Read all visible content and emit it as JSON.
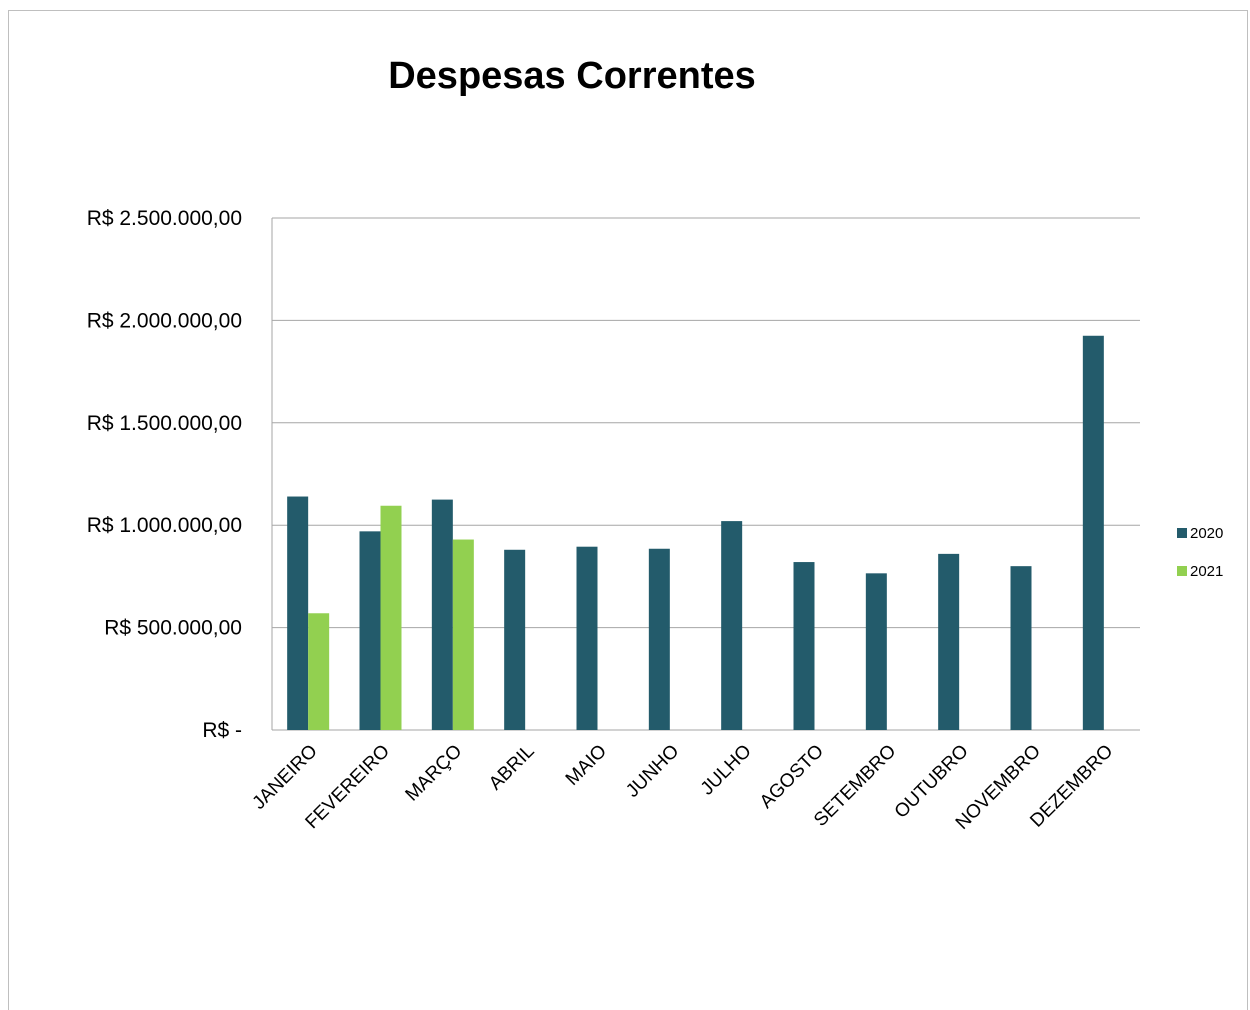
{
  "chart_data": {
    "type": "bar",
    "title": "Despesas Correntes",
    "xlabel": "",
    "ylabel": "",
    "categories": [
      "JANEIRO",
      "FEVEREIRO",
      "MARÇO",
      "ABRIL",
      "MAIO",
      "JUNHO",
      "JULHO",
      "AGOSTO",
      "SETEMBRO",
      "OUTUBRO",
      "NOVEMBRO",
      "DEZEMBRO"
    ],
    "series": [
      {
        "name": "2020",
        "color": "#235b6b",
        "values": [
          1140000,
          970000,
          1125000,
          880000,
          895000,
          885000,
          1020000,
          820000,
          765000,
          860000,
          800000,
          1925000
        ]
      },
      {
        "name": "2021",
        "color": "#92d050",
        "values": [
          570000,
          1095000,
          930000,
          null,
          null,
          null,
          null,
          null,
          null,
          null,
          null,
          null
        ]
      }
    ],
    "ylim": [
      0,
      2500000
    ],
    "yticks": [
      0,
      500000,
      1000000,
      1500000,
      2000000,
      2500000
    ],
    "ytick_labels": [
      "R$ -",
      "R$ 500.000,00",
      "R$ 1.000.000,00",
      "R$ 1.500.000,00",
      "R$ 2.000.000,00",
      "R$ 2.500.000,00"
    ],
    "grid": true,
    "legend_position": "right"
  }
}
